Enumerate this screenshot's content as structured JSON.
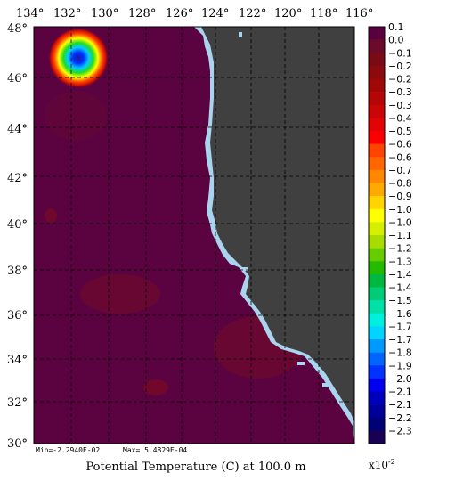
{
  "title": "Potential Temperature (C) at 100.0 m",
  "stats": {
    "min_text": "Min=-2.2940E-02",
    "max_text": "Max= 5.4829E-04"
  },
  "scale_label_base": "x10",
  "scale_label_exp": "-2",
  "lon_labels": [
    "134°",
    "132°",
    "130°",
    "128°",
    "126°",
    "124°",
    "122°",
    "120°",
    "118°",
    "116°"
  ],
  "lat_labels": [
    "48°",
    "46°",
    "44°",
    "42°",
    "40°",
    "38°",
    "36°",
    "34°",
    "32°",
    "30°"
  ],
  "colorbar": {
    "labels": [
      "0.1",
      "0.0",
      "−0.1",
      "−0.2",
      "−0.2",
      "−0.3",
      "−0.3",
      "−0.4",
      "−0.5",
      "−0.6",
      "−0.6",
      "−0.7",
      "−0.8",
      "−0.9",
      "−1.0",
      "−1.0",
      "−1.1",
      "−1.2",
      "−1.3",
      "−1.4",
      "−1.4",
      "−1.5",
      "−1.6",
      "−1.7",
      "−1.7",
      "−1.8",
      "−1.9",
      "−2.0",
      "−2.1",
      "−2.1",
      "−2.2",
      "−2.3"
    ],
    "colors": [
      "#5a0040",
      "#6b0a2a",
      "#7a0a16",
      "#8c0a0c",
      "#a00808",
      "#b40606",
      "#c80606",
      "#e00404",
      "#fa0000",
      "#ff4400",
      "#ff6600",
      "#ff8800",
      "#ffaa00",
      "#ffd400",
      "#ffff00",
      "#d6ee00",
      "#a8dc00",
      "#66cc00",
      "#22bb00",
      "#00b840",
      "#00cc77",
      "#00e0a8",
      "#00f0e0",
      "#00d4ff",
      "#0099ff",
      "#0066ff",
      "#0033ff",
      "#0000ee",
      "#0000bb",
      "#000099",
      "#000077",
      "#1a0055"
    ]
  },
  "colors": {
    "ocean": "#5a0340",
    "land": "#404040",
    "coast": "#aad4ee",
    "grid": "#000000"
  }
}
